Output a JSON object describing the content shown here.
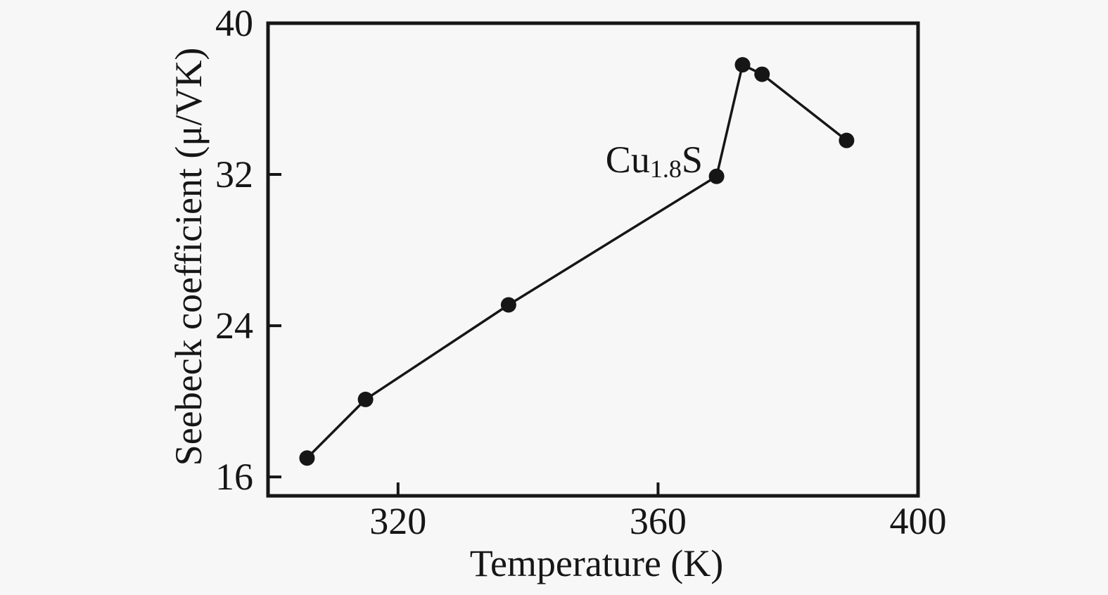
{
  "figure": {
    "background": "#f7f7f7",
    "ink": "#161616"
  },
  "chart_data": {
    "type": "line",
    "title": "",
    "xlabel": "Temperature (K)",
    "ylabel": "Seebeck coefficient (μ/VK)",
    "xlim": [
      300,
      400
    ],
    "ylim": [
      15,
      40
    ],
    "xticks": [
      320,
      360,
      400
    ],
    "yticks": [
      16,
      24,
      32,
      40
    ],
    "grid": false,
    "legend": "none",
    "tick_direction": "in",
    "annotation": {
      "text_prefix": "Cu",
      "text_subscript": "1.8",
      "text_suffix": "S",
      "x": 359.4,
      "y": 32.8
    },
    "series": [
      {
        "name": "Cu1.8S",
        "marker": "circle",
        "line_style": "solid",
        "color": "#161616",
        "x": [
          306,
          315,
          337,
          369,
          373,
          376,
          389
        ],
        "y": [
          17.0,
          20.1,
          25.1,
          31.9,
          37.8,
          37.3,
          33.8
        ]
      }
    ]
  }
}
